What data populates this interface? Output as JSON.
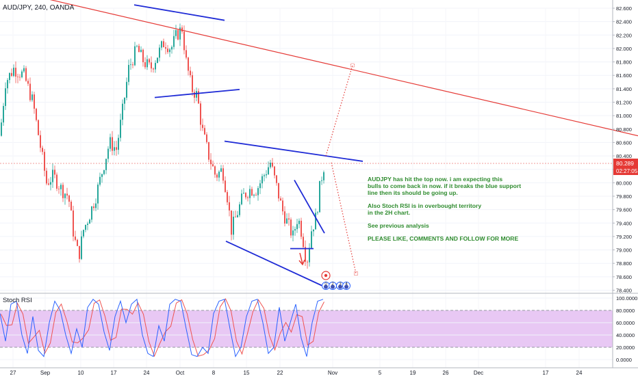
{
  "header": {
    "symbol_title": "AUD/JPY, 240, OANDA"
  },
  "price_label": {
    "last_price": "80.289",
    "countdown": "02:27:05",
    "bg_color": "#e53935"
  },
  "indicator": {
    "title": "Stoch RSI"
  },
  "annotation": {
    "paragraphs": [
      "AUDJPY has hit the top now. i am expecting this\nbulls to come back in now. if it breaks the blue support\nline then its should be going up.",
      "Also Stoch RSI is in overbought territory\nin the 2H chart.",
      "See previous analysis",
      "PLEASE LIKE, COMMENTS AND FOLLOW FOR MORE"
    ],
    "color": "#2e8b2e"
  },
  "colors": {
    "up_candle": "#26a69a",
    "down_candle": "#ef5350",
    "trendline_red": "#e53935",
    "trendline_blue": "#1f2bd6",
    "stoch_k": "#2962ff",
    "stoch_d": "#ef5350",
    "stoch_band": "#e1bee7"
  },
  "event_icons": [
    "0",
    "2",
    "3",
    "4"
  ],
  "chart_data": [
    {
      "type": "candlestick",
      "title": "AUD/JPY, 240, OANDA",
      "ylim": [
        78.4,
        82.7
      ],
      "y_ticks": [
        "82.600",
        "82.400",
        "82.200",
        "82.000",
        "81.800",
        "81.600",
        "81.400",
        "81.200",
        "81.000",
        "80.800",
        "80.600",
        "80.400",
        "80.200",
        "80.000",
        "79.800",
        "79.600",
        "79.400",
        "79.200",
        "79.000",
        "78.800",
        "78.600",
        "78.400"
      ],
      "x_ticks": [
        "27",
        "Sep",
        "10",
        "17",
        "24",
        "Oct",
        "8",
        "15",
        "22",
        "Nov",
        "5",
        "19",
        "26",
        "Dec",
        "17",
        "24"
      ],
      "last_value": 80.289,
      "close_path": [
        [
          0,
          80.7
        ],
        [
          8,
          81.5
        ],
        [
          20,
          81.7
        ],
        [
          35,
          81.6
        ],
        [
          48,
          81.2
        ],
        [
          58,
          80.6
        ],
        [
          68,
          80.0
        ],
        [
          78,
          80.1
        ],
        [
          90,
          79.9
        ],
        [
          100,
          79.8
        ],
        [
          108,
          79.2
        ],
        [
          115,
          78.9
        ],
        [
          122,
          79.3
        ],
        [
          130,
          79.5
        ],
        [
          140,
          79.8
        ],
        [
          150,
          80.2
        ],
        [
          160,
          80.6
        ],
        [
          170,
          80.5
        ],
        [
          178,
          81.0
        ],
        [
          188,
          81.7
        ],
        [
          200,
          82.0
        ],
        [
          210,
          81.8
        ],
        [
          220,
          81.7
        ],
        [
          230,
          81.9
        ],
        [
          240,
          82.1
        ],
        [
          250,
          82.0
        ],
        [
          258,
          82.2
        ],
        [
          266,
          82.3
        ],
        [
          272,
          81.8
        ],
        [
          280,
          81.4
        ],
        [
          288,
          81.3
        ],
        [
          295,
          80.8
        ],
        [
          305,
          80.4
        ],
        [
          315,
          80.1
        ],
        [
          325,
          80.2
        ],
        [
          332,
          79.8
        ],
        [
          338,
          79.3
        ],
        [
          345,
          79.5
        ],
        [
          355,
          79.8
        ],
        [
          365,
          79.9
        ],
        [
          375,
          79.9
        ],
        [
          385,
          80.1
        ],
        [
          395,
          80.3
        ],
        [
          405,
          79.9
        ],
        [
          412,
          79.6
        ],
        [
          420,
          79.4
        ],
        [
          428,
          79.2
        ],
        [
          435,
          79.5
        ],
        [
          442,
          79.2
        ],
        [
          448,
          78.8
        ],
        [
          455,
          79.3
        ],
        [
          462,
          79.5
        ],
        [
          468,
          80.0
        ],
        [
          474,
          80.289
        ]
      ],
      "drawings": [
        {
          "kind": "trendline",
          "color": "red",
          "points": [
            [
              0,
              82.9
            ],
            [
              932,
              80.7
            ]
          ]
        },
        {
          "kind": "trendline",
          "color": "blue",
          "points": [
            [
              196,
              82.65
            ],
            [
              328,
              82.42
            ]
          ]
        },
        {
          "kind": "trendline",
          "color": "blue",
          "points": [
            [
              226,
              81.27
            ],
            [
              350,
              81.39
            ]
          ]
        },
        {
          "kind": "trendline",
          "color": "blue",
          "points": [
            [
              328,
              80.62
            ],
            [
              530,
              80.32
            ]
          ]
        },
        {
          "kind": "trendline",
          "color": "blue",
          "points": [
            [
              330,
              79.13
            ],
            [
              470,
              78.47
            ]
          ]
        },
        {
          "kind": "trendline",
          "color": "blue",
          "points": [
            [
              430,
              80.04
            ],
            [
              474,
              79.25
            ]
          ]
        },
        {
          "kind": "trendline",
          "color": "blue",
          "points": [
            [
              424,
              79.02
            ],
            [
              458,
              79.02
            ]
          ]
        },
        {
          "kind": "projection",
          "color": "red",
          "style": "dotted",
          "points": [
            [
              476,
              80.4
            ],
            [
              515,
              81.75
            ]
          ]
        },
        {
          "kind": "projection",
          "color": "red",
          "style": "dotted",
          "points": [
            [
              484,
              80.3
            ],
            [
              520,
              78.65
            ]
          ]
        }
      ]
    },
    {
      "type": "line",
      "title": "Stoch RSI",
      "ylim": [
        0,
        100
      ],
      "y_ticks": [
        "100.0000",
        "80.0000",
        "60.0000",
        "40.0000",
        "20.0000",
        "0.0000"
      ],
      "bands": [
        20,
        80
      ],
      "series": [
        {
          "name": "",
          "values_note": ""
        }
      ],
      "k_path": [
        [
          0,
          75
        ],
        [
          8,
          30
        ],
        [
          16,
          90
        ],
        [
          24,
          95
        ],
        [
          32,
          40
        ],
        [
          40,
          10
        ],
        [
          48,
          70
        ],
        [
          56,
          15
        ],
        [
          64,
          5
        ],
        [
          72,
          60
        ],
        [
          80,
          95
        ],
        [
          88,
          80
        ],
        [
          96,
          40
        ],
        [
          104,
          10
        ],
        [
          112,
          50
        ],
        [
          120,
          20
        ],
        [
          128,
          85
        ],
        [
          136,
          98
        ],
        [
          144,
          90
        ],
        [
          152,
          45
        ],
        [
          160,
          15
        ],
        [
          168,
          70
        ],
        [
          176,
          95
        ],
        [
          184,
          60
        ],
        [
          192,
          90
        ],
        [
          200,
          98
        ],
        [
          208,
          40
        ],
        [
          216,
          10
        ],
        [
          224,
          5
        ],
        [
          232,
          55
        ],
        [
          240,
          30
        ],
        [
          248,
          90
        ],
        [
          256,
          98
        ],
        [
          264,
          95
        ],
        [
          272,
          50
        ],
        [
          280,
          8
        ],
        [
          288,
          5
        ],
        [
          296,
          20
        ],
        [
          304,
          10
        ],
        [
          312,
          75
        ],
        [
          320,
          95
        ],
        [
          328,
          98
        ],
        [
          336,
          50
        ],
        [
          344,
          5
        ],
        [
          352,
          20
        ],
        [
          360,
          70
        ],
        [
          368,
          95
        ],
        [
          376,
          98
        ],
        [
          384,
          60
        ],
        [
          392,
          10
        ],
        [
          400,
          20
        ],
        [
          408,
          85
        ],
        [
          416,
          30
        ],
        [
          424,
          60
        ],
        [
          432,
          90
        ],
        [
          440,
          35
        ],
        [
          448,
          5
        ],
        [
          456,
          60
        ],
        [
          464,
          95
        ],
        [
          472,
          98
        ]
      ]
    }
  ]
}
